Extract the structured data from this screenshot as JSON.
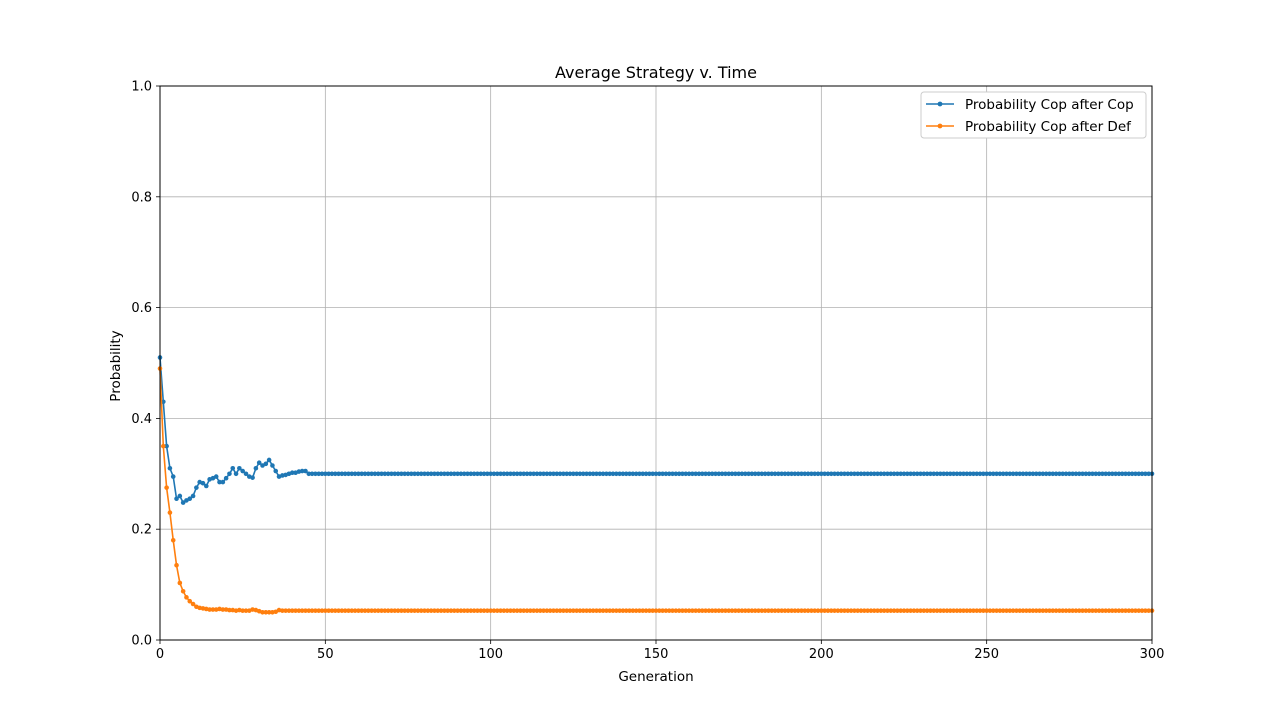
{
  "chart_data": {
    "type": "line",
    "title": "Average Strategy v. Time",
    "xlabel": "Generation",
    "ylabel": "Probability",
    "xlim": [
      0,
      300
    ],
    "ylim": [
      0,
      1
    ],
    "xticks": [
      0,
      50,
      100,
      150,
      200,
      250,
      300
    ],
    "yticks": [
      0.0,
      0.2,
      0.4,
      0.6,
      0.8,
      1.0
    ],
    "xtick_labels": [
      "0",
      "50",
      "100",
      "150",
      "200",
      "250",
      "300"
    ],
    "ytick_labels": [
      "0.0",
      "0.2",
      "0.4",
      "0.6",
      "0.8",
      "1.0"
    ],
    "grid": true,
    "legend": "top-right",
    "series": [
      {
        "name": "Probability Cop after Cop",
        "color": "#1f77b4",
        "marker": "circle",
        "initial_values": [
          0.51,
          0.43,
          0.35,
          0.31,
          0.295,
          0.255,
          0.26,
          0.248,
          0.252,
          0.255,
          0.26,
          0.275,
          0.285,
          0.283,
          0.278,
          0.29,
          0.292,
          0.295,
          0.285,
          0.285,
          0.292,
          0.3,
          0.31,
          0.3,
          0.31,
          0.305,
          0.3,
          0.295,
          0.293,
          0.31,
          0.32,
          0.315,
          0.318,
          0.325,
          0.315,
          0.305,
          0.295,
          0.297,
          0.298,
          0.3,
          0.302,
          0.302,
          0.304,
          0.305,
          0.305
        ],
        "steady_value": 0.3,
        "steady_from": 45,
        "steady_to": 300
      },
      {
        "name": "Probability Cop after Def",
        "color": "#ff7f0e",
        "marker": "circle",
        "initial_values": [
          0.49,
          0.35,
          0.275,
          0.23,
          0.18,
          0.135,
          0.103,
          0.088,
          0.077,
          0.07,
          0.065,
          0.06,
          0.058,
          0.057,
          0.056,
          0.055,
          0.055,
          0.055,
          0.056,
          0.055,
          0.055,
          0.054,
          0.054,
          0.053,
          0.054,
          0.053,
          0.053,
          0.053,
          0.055,
          0.054,
          0.052,
          0.05,
          0.05,
          0.05,
          0.05,
          0.051,
          0.054,
          0.053,
          0.053,
          0.053,
          0.053,
          0.053,
          0.053,
          0.053,
          0.053
        ],
        "steady_value": 0.053,
        "steady_from": 45,
        "steady_to": 300
      }
    ]
  }
}
